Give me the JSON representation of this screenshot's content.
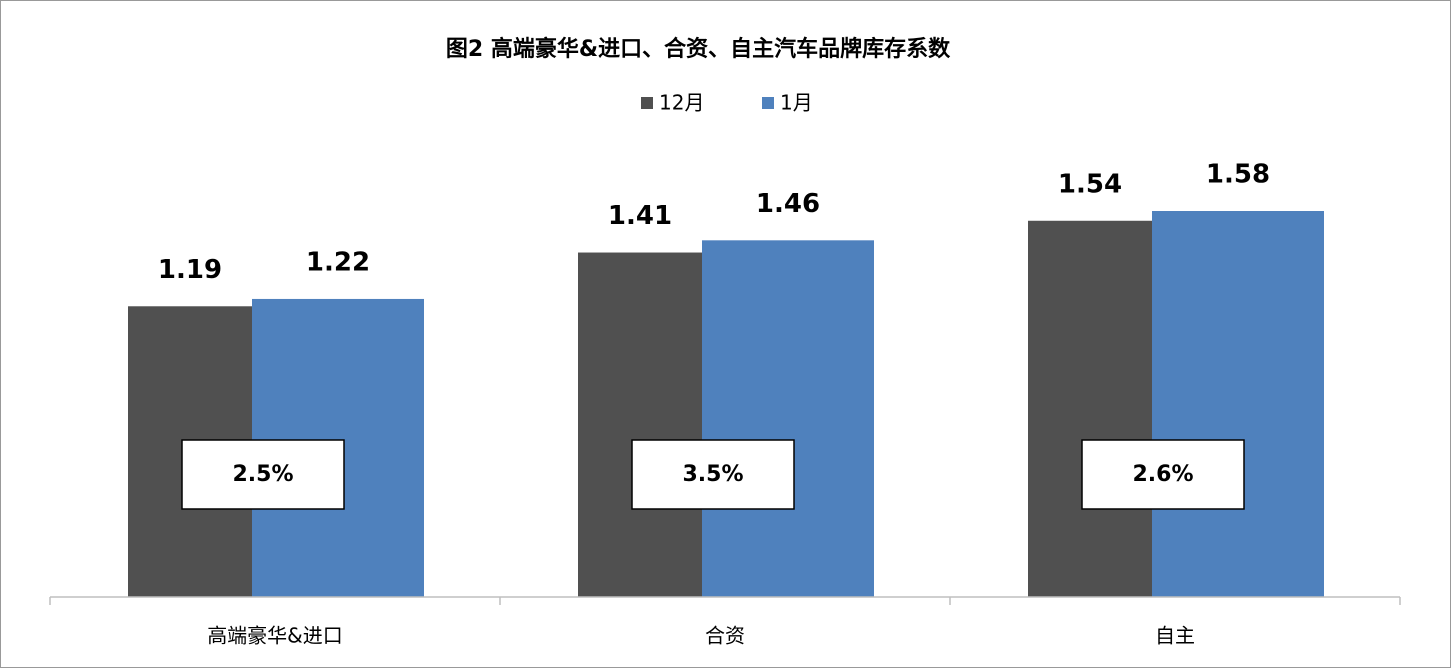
{
  "chart_data": {
    "type": "bar",
    "title": "图2 高端豪华&进口、合资、自主汽车品牌库存系数",
    "categories": [
      "高端豪华&进口",
      "合资",
      "自主"
    ],
    "series": [
      {
        "name": "12月",
        "color": "#505050",
        "values": [
          1.19,
          1.41,
          1.54
        ]
      },
      {
        "name": "1月",
        "color": "#4f81bd",
        "values": [
          1.22,
          1.46,
          1.58
        ]
      }
    ],
    "annotations": [
      "2.5%",
      "3.5%",
      "2.6%"
    ],
    "annotation_color": "#ff0000",
    "legend": "top"
  }
}
